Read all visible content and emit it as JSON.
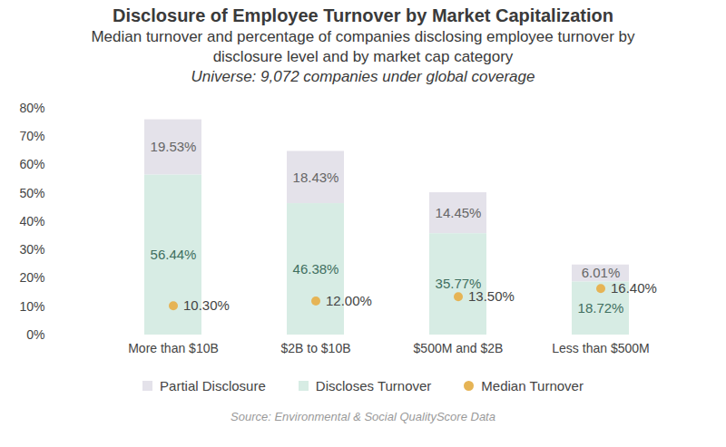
{
  "chart_data": {
    "type": "bar",
    "title": "Disclosure of Employee Turnover by Market Capitalization",
    "subtitle": "Median turnover and percentage of companies disclosing employee turnover by disclosure level and by market cap category",
    "subtitle2": "Universe: 9,072 companies under global coverage",
    "caption": "Source: Environmental & Social QualityScore Data",
    "categories": [
      "More than $10B",
      "$2B to $10B",
      "$500M and $2B",
      "Less than $500M"
    ],
    "series": [
      {
        "name": "Partial Disclosure",
        "type": "bar",
        "color": "#e4e2ea",
        "values": [
          19.53,
          18.43,
          14.45,
          6.01
        ],
        "value_labels": [
          "19.53%",
          "18.43%",
          "14.45%",
          "6.01%"
        ]
      },
      {
        "name": "Discloses Turnover",
        "type": "bar",
        "color": "#d7ece4",
        "values": [
          56.44,
          46.38,
          35.77,
          18.72
        ],
        "value_labels": [
          "56.44%",
          "46.38%",
          "35.77%",
          "18.72%"
        ]
      },
      {
        "name": "Median Turnover",
        "type": "scatter",
        "marker": "circle",
        "color": "#e6b455",
        "values": [
          10.3,
          12.0,
          13.5,
          16.4
        ],
        "value_labels": [
          "10.30%",
          "12.00%",
          "13.50%",
          "16.40%"
        ]
      }
    ],
    "stacked": true,
    "data_labels": true,
    "grid": false,
    "legend": "bottom",
    "ylim": [
      0,
      80
    ],
    "yticks": [
      {
        "value": 0,
        "label": "0%"
      },
      {
        "value": 10,
        "label": "10%"
      },
      {
        "value": 20,
        "label": "20%"
      },
      {
        "value": 30,
        "label": "30%"
      },
      {
        "value": 40,
        "label": "40%"
      },
      {
        "value": 50,
        "label": "50%"
      },
      {
        "value": 60,
        "label": "60%"
      },
      {
        "value": 70,
        "label": "70%"
      },
      {
        "value": 80,
        "label": "80%"
      }
    ]
  }
}
